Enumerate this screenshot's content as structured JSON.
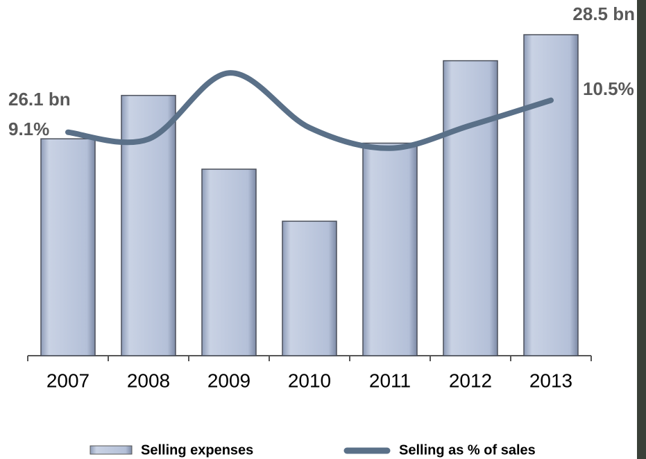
{
  "chart_data": {
    "type": "bar",
    "categories": [
      "2007",
      "2008",
      "2009",
      "2010",
      "2011",
      "2012",
      "2013"
    ],
    "series": [
      {
        "name": "Selling expenses",
        "color": "#b4c0d8",
        "values": [
          26.1,
          27.1,
          25.4,
          24.2,
          26.0,
          27.9,
          28.5
        ],
        "value_labels": [
          "26.1 bn",
          null,
          null,
          null,
          null,
          null,
          "28.5 bn"
        ]
      },
      {
        "name": "Selling as % of sales",
        "type": "line",
        "axis": "y2",
        "color": "#5a7088",
        "values": [
          9.1,
          8.8,
          11.7,
          9.3,
          8.4,
          9.4,
          10.5
        ],
        "value_labels": [
          "9.1%",
          null,
          null,
          null,
          null,
          null,
          "10.5%"
        ]
      }
    ],
    "ylim": [
      21.1,
      29.3
    ],
    "y2lim": [
      -0.7,
      14.9
    ]
  }
}
